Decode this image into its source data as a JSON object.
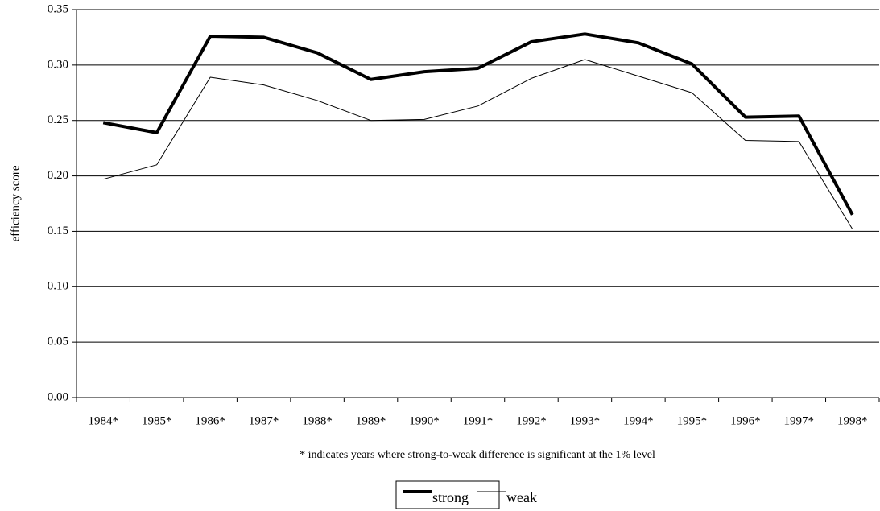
{
  "chart_data": {
    "type": "line",
    "y_label": "efficiency score",
    "note": "* indicates years where strong-to-weak difference is significant at the 1% level",
    "categories": [
      "1984*",
      "1985*",
      "1986*",
      "1987*",
      "1988*",
      "1989*",
      "1990*",
      "1991*",
      "1992*",
      "1993*",
      "1994*",
      "1995*",
      "1996*",
      "1997*",
      "1998*"
    ],
    "series": [
      {
        "name": "strong",
        "color": "#000000",
        "line_width": 4,
        "values": [
          0.248,
          0.239,
          0.326,
          0.325,
          0.311,
          0.287,
          0.294,
          0.297,
          0.321,
          0.328,
          0.32,
          0.301,
          0.253,
          0.254,
          0.165
        ]
      },
      {
        "name": "weak",
        "color": "#000000",
        "line_width": 1,
        "values": [
          0.197,
          0.21,
          0.289,
          0.282,
          0.268,
          0.25,
          0.251,
          0.263,
          0.288,
          0.305,
          0.29,
          0.275,
          0.232,
          0.231,
          0.152
        ]
      }
    ],
    "ylim": [
      0,
      0.35
    ],
    "yticks": [
      {
        "value": 0,
        "label": "0.00"
      },
      0.05,
      {
        "value": 0.1,
        "label": "0.10"
      },
      0.15,
      {
        "value": 0.2,
        "label": "0.20"
      },
      0.25,
      {
        "value": 0.3,
        "label": "0.30"
      },
      0.35
    ],
    "grid": true,
    "legend": "bottom"
  }
}
